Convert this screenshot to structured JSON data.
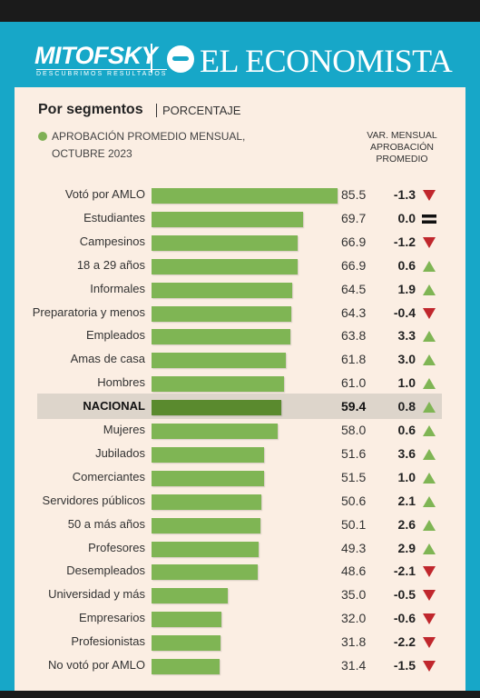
{
  "header": {
    "brand_left": "MITOFSKY",
    "brand_left_tagline": "DESCUBRIMOS RESULTADOS",
    "brand_right": "EL ECONOMISTA"
  },
  "section": {
    "title": "Por segmentos",
    "subtitle": "PORCENTAJE"
  },
  "legend": {
    "label": "APROBACIÓN PROMEDIO MENSUAL, OCTUBRE 2023",
    "color": "#7fb554"
  },
  "column_header": "VAR. MENSUAL APROBACIÓN PROMEDIO",
  "colors": {
    "bar": "#7fb554",
    "bar_highlight": "#5a8a2e",
    "up": "#7fb554",
    "down": "#c0272d",
    "panel": "#fbeee3",
    "frame": "#17a7c8"
  },
  "chart_data": {
    "type": "bar",
    "orientation": "horizontal",
    "xlim": [
      0,
      100
    ],
    "highlight": "NACIONAL",
    "categories": [
      "Votó por AMLO",
      "Estudiantes",
      "Campesinos",
      "18 a 29 años",
      "Informales",
      "Preparatoria y menos",
      "Empleados",
      "Amas de casa",
      "Hombres",
      "NACIONAL",
      "Mujeres",
      "Jubilados",
      "Comerciantes",
      "Servidores públicos",
      "50 a más años",
      "Profesores",
      "Desempleados",
      "Universidad y más",
      "Empresarios",
      "Profesionistas",
      "No votó por AMLO"
    ],
    "values": [
      85.5,
      69.7,
      66.9,
      66.9,
      64.5,
      64.3,
      63.8,
      61.8,
      61.0,
      59.4,
      58.0,
      51.6,
      51.5,
      50.6,
      50.1,
      49.3,
      48.6,
      35.0,
      32.0,
      31.8,
      31.4
    ],
    "value_labels": [
      "85.5",
      "69.7",
      "66.9",
      "66.9",
      "64.5",
      "64.3",
      "63.8",
      "61.8",
      "61.0",
      "59.4",
      "58.0",
      "51.6",
      "51.5",
      "50.6",
      "50.1",
      "49.3",
      "48.6",
      "35.0",
      "32.0",
      "31.8",
      "31.4"
    ],
    "monthly_change": [
      "-1.3",
      "0.0",
      "-1.2",
      "0.6",
      "1.9",
      "-0.4",
      "3.3",
      "3.0",
      "1.0",
      "0.8",
      "0.6",
      "3.6",
      "1.0",
      "2.1",
      "2.6",
      "2.9",
      "-2.1",
      "-0.5",
      "-0.6",
      "-2.2",
      "-1.5"
    ],
    "change_direction": [
      "down",
      "equal",
      "down",
      "up",
      "up",
      "down",
      "up",
      "up",
      "up",
      "up",
      "up",
      "up",
      "up",
      "up",
      "up",
      "up",
      "down",
      "down",
      "down",
      "down",
      "down"
    ]
  }
}
